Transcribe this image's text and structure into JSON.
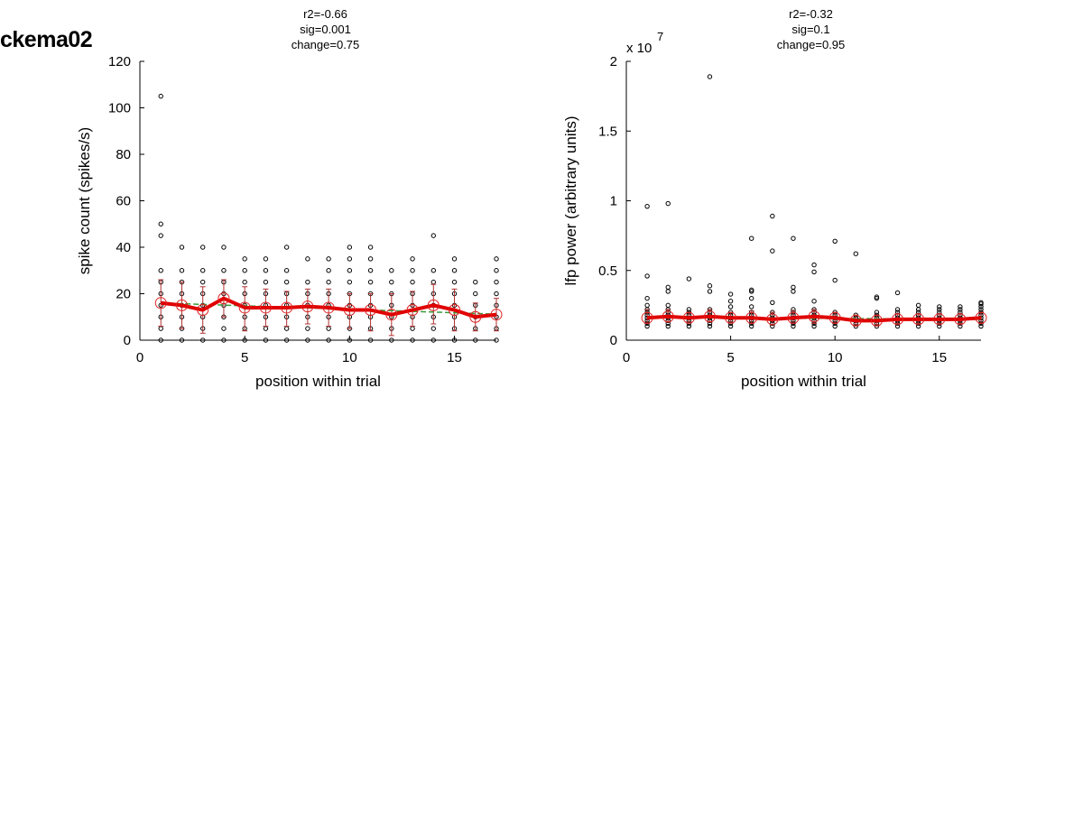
{
  "page_label": "ckema02",
  "chart_data": [
    {
      "type": "scatter",
      "annotation": [
        "r2=-0.66",
        "sig=0.001",
        "change=0.75"
      ],
      "xlabel": "position within trial",
      "ylabel": "spike count (spikes/s)",
      "xlim": [
        0,
        17
      ],
      "ylim": [
        0,
        120
      ],
      "xticks": [
        0,
        5,
        10,
        15
      ],
      "yticks": [
        0,
        20,
        40,
        60,
        80,
        100,
        120
      ],
      "grid": false,
      "points_by_position": [
        [
          0,
          5,
          10,
          15,
          20,
          25,
          30,
          45,
          50,
          105
        ],
        [
          0,
          5,
          10,
          15,
          20,
          25,
          30,
          40
        ],
        [
          0,
          5,
          10,
          15,
          20,
          25,
          30,
          40
        ],
        [
          0,
          5,
          10,
          15,
          20,
          25,
          30,
          40
        ],
        [
          0,
          5,
          10,
          15,
          20,
          25,
          30,
          35
        ],
        [
          0,
          5,
          10,
          15,
          20,
          25,
          30,
          35
        ],
        [
          0,
          5,
          10,
          15,
          20,
          25,
          30,
          40
        ],
        [
          0,
          5,
          10,
          15,
          20,
          25,
          35
        ],
        [
          0,
          5,
          10,
          15,
          20,
          25,
          30,
          35
        ],
        [
          0,
          5,
          10,
          15,
          20,
          25,
          30,
          35,
          40
        ],
        [
          0,
          5,
          10,
          15,
          20,
          25,
          30,
          35,
          40
        ],
        [
          0,
          5,
          10,
          15,
          20,
          25,
          30
        ],
        [
          0,
          5,
          10,
          15,
          20,
          25,
          30,
          35
        ],
        [
          0,
          5,
          10,
          15,
          20,
          25,
          30,
          45
        ],
        [
          0,
          5,
          10,
          15,
          20,
          25,
          30,
          35
        ],
        [
          0,
          5,
          10,
          15,
          20,
          25
        ],
        [
          0,
          5,
          10,
          15,
          20,
          25,
          30,
          35
        ]
      ],
      "mean": [
        16,
        15,
        13,
        18,
        14,
        14,
        14,
        14.5,
        14,
        13,
        13,
        11,
        13,
        15,
        13,
        10,
        11
      ],
      "err_low": [
        6,
        5,
        3,
        10,
        4,
        6,
        6,
        7,
        6,
        5,
        4,
        2,
        6,
        7,
        4,
        4,
        4
      ],
      "err_high": [
        26,
        25,
        23,
        26,
        23,
        22,
        21,
        22,
        22,
        20,
        20,
        20,
        21,
        24,
        22,
        16,
        18
      ],
      "trend": [
        16,
        15.7,
        15.4,
        15.1,
        14.8,
        14.5,
        14.2,
        13.9,
        13.6,
        13.3,
        13,
        12.7,
        12.4,
        12.1,
        11.8,
        11.5,
        11.2
      ]
    },
    {
      "type": "scatter",
      "annotation": [
        "r2=-0.32",
        "sig=0.1",
        "change=0.95"
      ],
      "xlabel": "position within trial",
      "ylabel": "lfp power (arbitrary units)",
      "y_exponent_label": "x 10",
      "y_exponent": "7",
      "xlim": [
        0,
        17
      ],
      "ylim": [
        0,
        2
      ],
      "xticks": [
        0,
        5,
        10,
        15
      ],
      "yticks": [
        0,
        0.5,
        1,
        1.5,
        2
      ],
      "grid": false,
      "points_by_position": [
        [
          0.1,
          0.12,
          0.14,
          0.16,
          0.18,
          0.2,
          0.22,
          0.25,
          0.3,
          0.46,
          0.96
        ],
        [
          0.1,
          0.12,
          0.14,
          0.16,
          0.18,
          0.2,
          0.22,
          0.25,
          0.35,
          0.38,
          0.98
        ],
        [
          0.1,
          0.12,
          0.14,
          0.16,
          0.18,
          0.2,
          0.22,
          0.44
        ],
        [
          0.1,
          0.12,
          0.14,
          0.16,
          0.18,
          0.2,
          0.22,
          0.35,
          0.39,
          1.89
        ],
        [
          0.1,
          0.12,
          0.14,
          0.16,
          0.18,
          0.2,
          0.24,
          0.28,
          0.33
        ],
        [
          0.1,
          0.12,
          0.14,
          0.16,
          0.18,
          0.2,
          0.24,
          0.3,
          0.35,
          0.36,
          0.73
        ],
        [
          0.1,
          0.12,
          0.14,
          0.16,
          0.18,
          0.2,
          0.27,
          0.64,
          0.89
        ],
        [
          0.1,
          0.12,
          0.14,
          0.16,
          0.18,
          0.2,
          0.22,
          0.35,
          0.38,
          0.73
        ],
        [
          0.1,
          0.12,
          0.14,
          0.16,
          0.18,
          0.2,
          0.22,
          0.28,
          0.49,
          0.54
        ],
        [
          0.1,
          0.12,
          0.14,
          0.16,
          0.18,
          0.2,
          0.43,
          0.71
        ],
        [
          0.1,
          0.12,
          0.14,
          0.16,
          0.18,
          0.62
        ],
        [
          0.1,
          0.12,
          0.14,
          0.16,
          0.18,
          0.2,
          0.3,
          0.31
        ],
        [
          0.1,
          0.12,
          0.14,
          0.16,
          0.18,
          0.2,
          0.22,
          0.34
        ],
        [
          0.1,
          0.12,
          0.14,
          0.16,
          0.18,
          0.2,
          0.22,
          0.25
        ],
        [
          0.1,
          0.12,
          0.14,
          0.16,
          0.18,
          0.2,
          0.22,
          0.24
        ],
        [
          0.1,
          0.12,
          0.14,
          0.16,
          0.18,
          0.2,
          0.22,
          0.24
        ],
        [
          0.1,
          0.12,
          0.14,
          0.16,
          0.18,
          0.2,
          0.22,
          0.24,
          0.26,
          0.27
        ]
      ],
      "mean": [
        0.16,
        0.17,
        0.16,
        0.17,
        0.16,
        0.16,
        0.15,
        0.16,
        0.17,
        0.16,
        0.14,
        0.14,
        0.15,
        0.15,
        0.15,
        0.15,
        0.16
      ],
      "err_low": [
        0.12,
        0.13,
        0.13,
        0.13,
        0.13,
        0.12,
        0.11,
        0.12,
        0.12,
        0.12,
        0.11,
        0.11,
        0.12,
        0.12,
        0.12,
        0.12,
        0.12
      ],
      "err_high": [
        0.22,
        0.22,
        0.2,
        0.22,
        0.2,
        0.21,
        0.2,
        0.21,
        0.22,
        0.2,
        0.18,
        0.18,
        0.19,
        0.19,
        0.19,
        0.19,
        0.2
      ],
      "trend": [
        0.165,
        0.164,
        0.163,
        0.162,
        0.161,
        0.16,
        0.159,
        0.158,
        0.157,
        0.156,
        0.155,
        0.154,
        0.153,
        0.152,
        0.151,
        0.15,
        0.149
      ]
    }
  ]
}
